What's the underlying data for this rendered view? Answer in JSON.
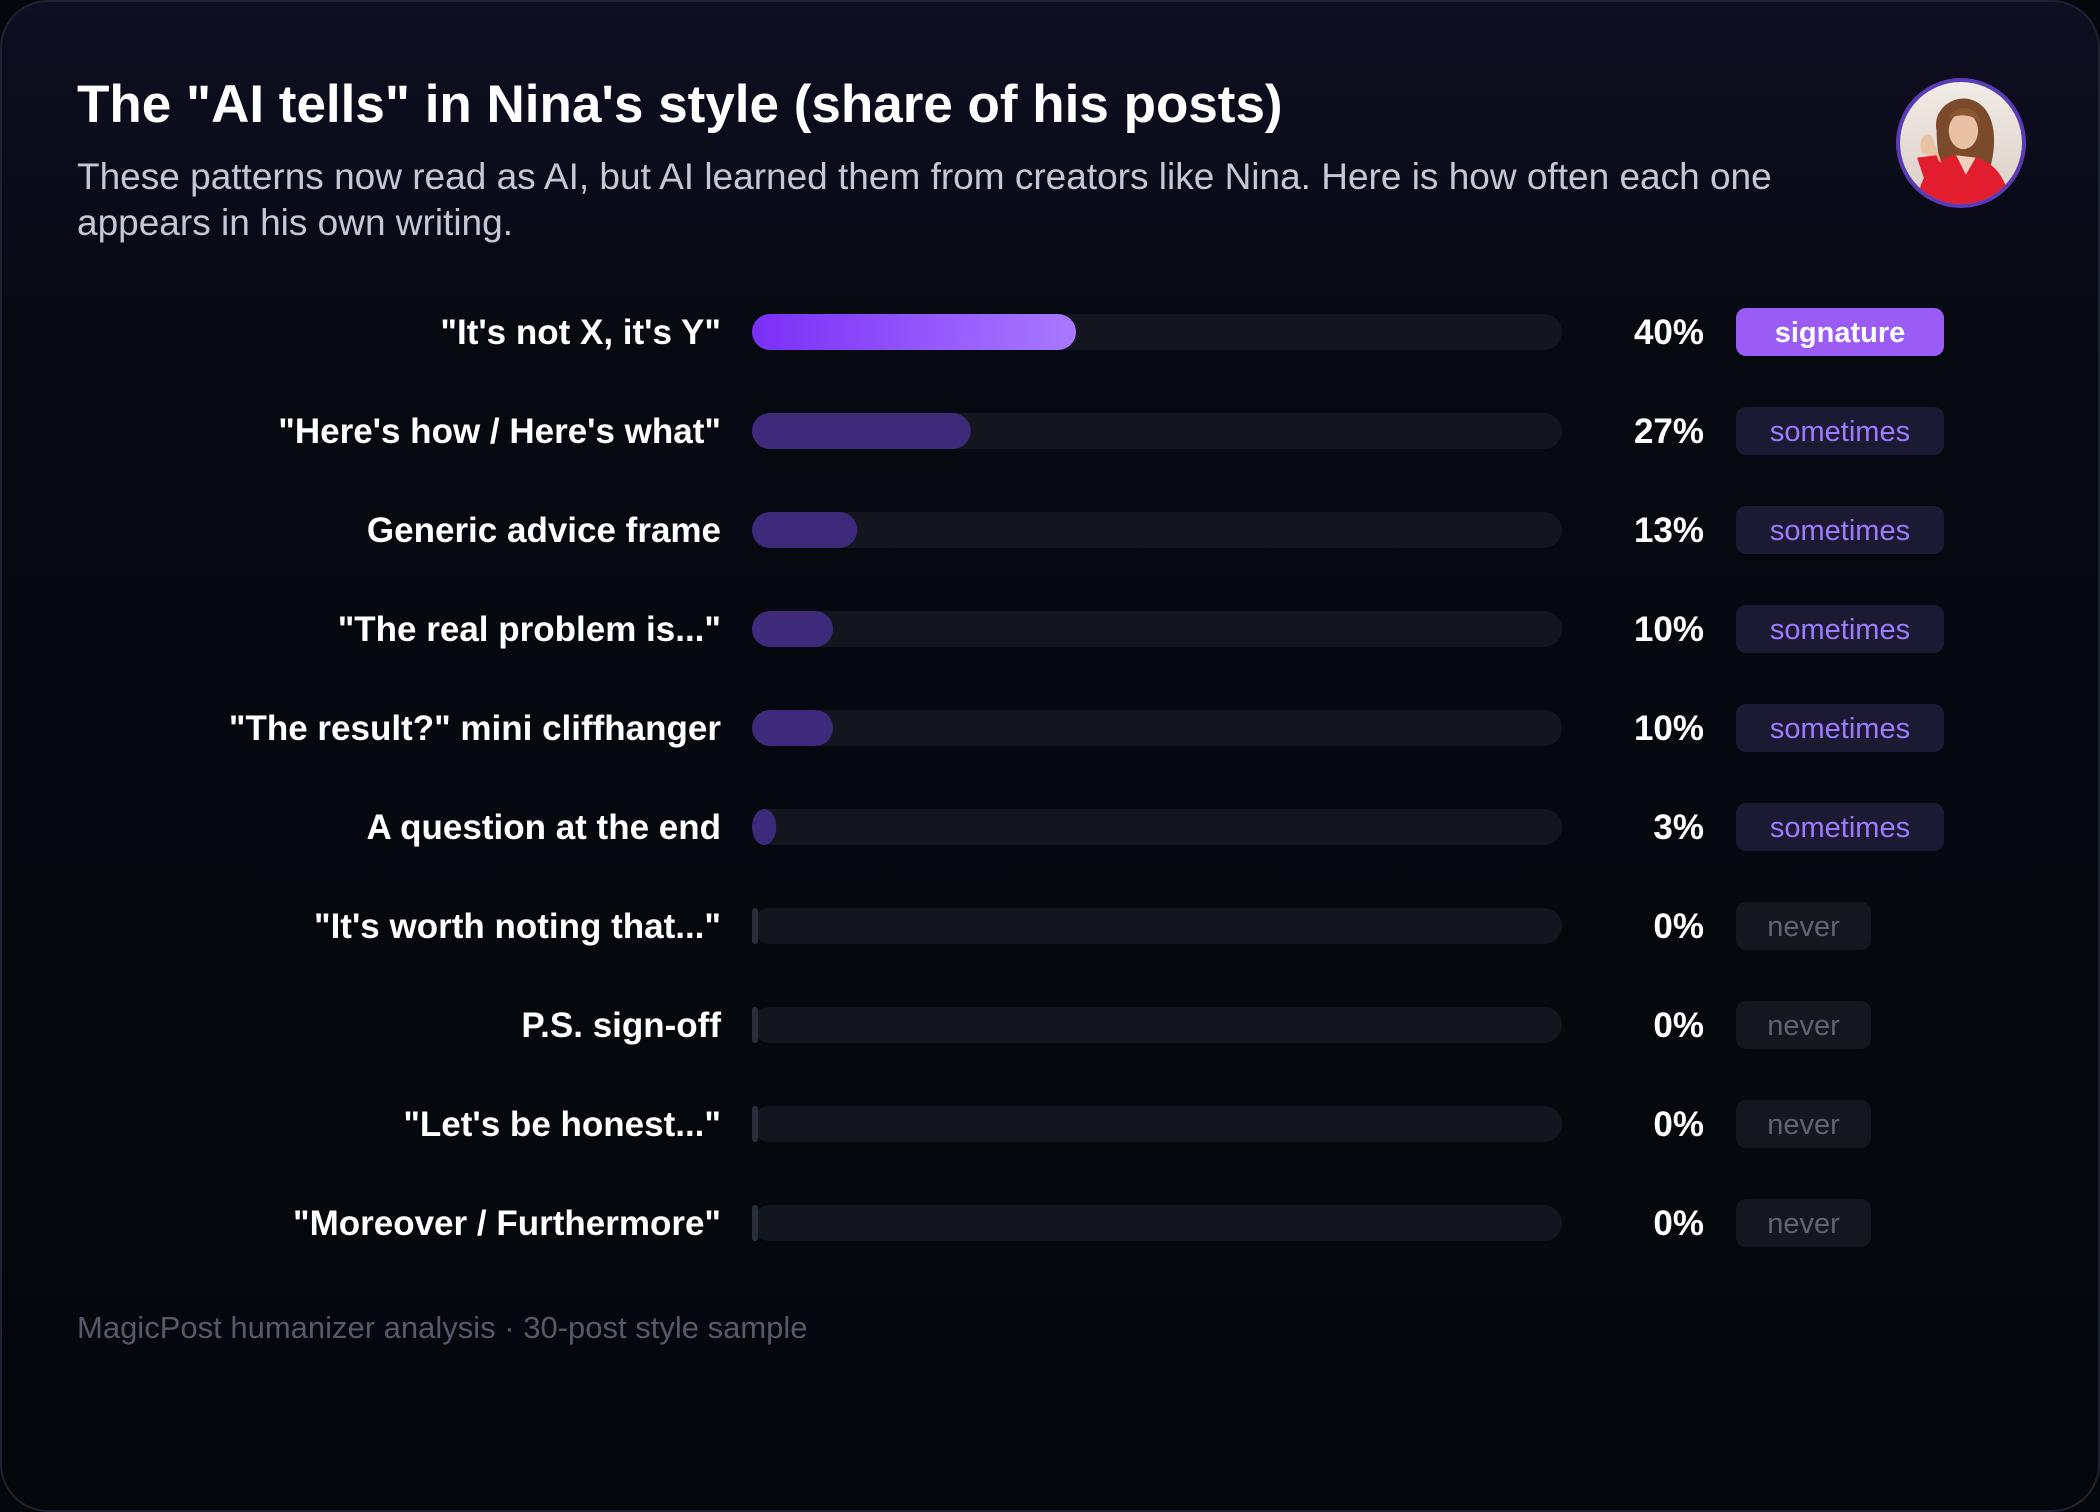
{
  "header": {
    "title": "The \"AI tells\" in Nina's style (share of his posts)",
    "subtitle": "These patterns now read as AI, but AI learned them from creators like Nina. Here is how often each one appears in his own writing."
  },
  "avatar": {
    "icon": "person-portrait-icon"
  },
  "footer": {
    "text": "MagicPost humanizer analysis · 30-post style sample"
  },
  "colors": {
    "signature_bar_start": "#7b2ff7",
    "signature_bar_end": "#a879ff",
    "sometimes_bar": "#3d2a7a",
    "track": "#14161f",
    "never_stub": "#2a2d3a",
    "label_text": "#ffffff",
    "signature_badge_bg": "#9b5cf6",
    "signature_badge_text": "#ffffff",
    "sometimes_badge_bg": "#1c1a33",
    "sometimes_badge_text": "#9b7cff",
    "never_badge_bg": "#15171f",
    "never_badge_text": "#5f6372"
  },
  "chart_data": {
    "type": "bar",
    "orientation": "horizontal",
    "categories": [
      "\"It's not X, it's Y\"",
      "\"Here's how / Here's what\"",
      "Generic advice frame",
      "\"The real problem is...\"",
      "\"The result?\" mini cliffhanger",
      "A question at the end",
      "\"It's worth noting that...\"",
      "P.S. sign-off",
      "\"Let's be honest...\"",
      "\"Moreover / Furthermore\""
    ],
    "values": [
      40,
      27,
      13,
      10,
      10,
      3,
      0,
      0,
      0,
      0
    ],
    "value_labels": [
      "40%",
      "27%",
      "13%",
      "10%",
      "10%",
      "3%",
      "0%",
      "0%",
      "0%",
      "0%"
    ],
    "badges": [
      "signature",
      "sometimes",
      "sometimes",
      "sometimes",
      "sometimes",
      "sometimes",
      "never",
      "never",
      "never",
      "never"
    ],
    "xlim": [
      0,
      100
    ],
    "grid": false,
    "legend": "none"
  }
}
